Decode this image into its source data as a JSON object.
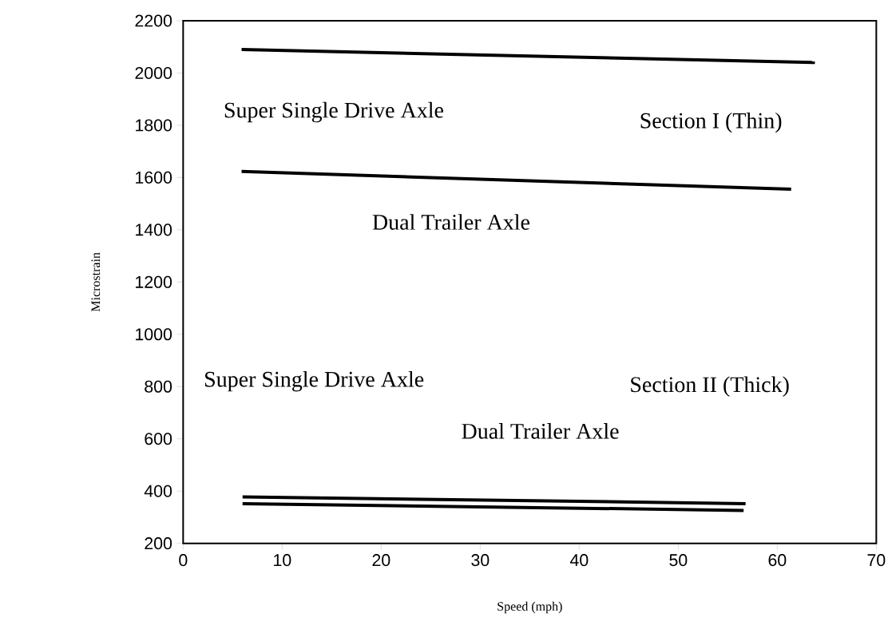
{
  "chart_data": {
    "type": "line",
    "xlabel": "Speed (mph)",
    "ylabel": "Microstrain",
    "xlim": [
      0,
      70
    ],
    "xticks": [
      0,
      10,
      20,
      30,
      40,
      50,
      60,
      70
    ],
    "ylim": [
      200,
      2200
    ],
    "yticks": [
      200,
      400,
      600,
      800,
      1000,
      1200,
      1400,
      1600,
      1800,
      2000,
      2200
    ],
    "series": [
      {
        "color": "#000000",
        "x": [
          5.9,
          63.8
        ],
        "values": [
          2090,
          2040
        ]
      },
      {
        "color": "#000000",
        "x": [
          5.9,
          61.4
        ],
        "values": [
          1623,
          1555
        ]
      },
      {
        "color": "#000000",
        "x": [
          6.0,
          56.8
        ],
        "values": [
          378,
          352
        ]
      },
      {
        "color": "#000000",
        "x": [
          6.0,
          56.6
        ],
        "values": [
          352,
          326
        ]
      }
    ],
    "annotations": [
      "Super Single Drive Axle",
      "Dual Trailer Axle",
      "Section I (Thin)",
      "Super Single Drive Axle",
      "Dual Trailer Axle",
      "Section II (Thick)"
    ],
    "grid": false,
    "marker": "none",
    "line_style": "solid"
  }
}
